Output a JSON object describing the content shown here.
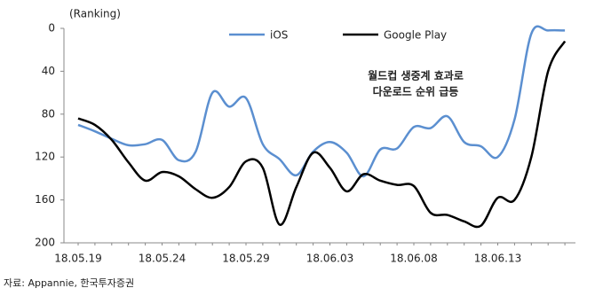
{
  "chart_data": {
    "type": "line",
    "y_label": "(Ranking)",
    "annotation": [
      "월드컵 생중계 효과로",
      "다운로드 순위 급등"
    ],
    "source": "자료: Appannie, 한국투자증권",
    "categories": [
      "18.05.19",
      null,
      null,
      null,
      null,
      "18.05.24",
      null,
      null,
      null,
      null,
      "18.05.29",
      null,
      null,
      null,
      null,
      "18.06.03",
      null,
      null,
      null,
      null,
      "18.06.08",
      null,
      null,
      null,
      null,
      "18.06.13",
      null,
      null,
      null,
      null
    ],
    "series": [
      {
        "name": "iOS",
        "color": "#5b8fd0",
        "values": [
          90,
          96,
          103,
          109,
          108,
          104,
          123,
          115,
          60,
          73,
          65,
          108,
          122,
          137,
          115,
          106,
          116,
          138,
          113,
          112,
          92,
          93,
          82,
          106,
          110,
          120,
          85,
          5,
          2,
          2
        ]
      },
      {
        "name": "Google Play",
        "color": "#000000",
        "values": [
          84,
          90,
          104,
          125,
          142,
          134,
          138,
          150,
          158,
          148,
          124,
          130,
          183,
          148,
          116,
          130,
          152,
          136,
          142,
          146,
          147,
          172,
          174,
          180,
          184,
          158,
          160,
          120,
          40,
          12
        ]
      }
    ],
    "ylim": [
      0,
      200
    ],
    "yticks": [
      0,
      40,
      80,
      120,
      160,
      200
    ],
    "y_inverted": true,
    "grid": false,
    "legend": "top"
  }
}
